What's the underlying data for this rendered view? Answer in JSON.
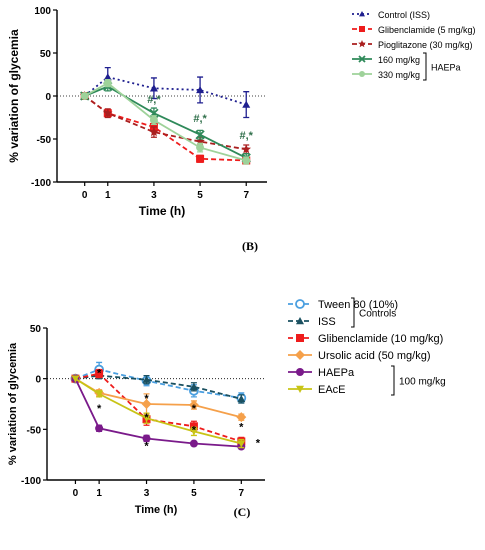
{
  "panel_labels": [
    "(B)",
    "(C)"
  ],
  "chart_data": [
    {
      "type": "line",
      "panel": "(B)",
      "xlabel": "Time (h)",
      "ylabel": "% variation of glycemia",
      "x": [
        0,
        1,
        3,
        5,
        7
      ],
      "x_ticks": [
        "0",
        "1",
        "3",
        "5",
        "7"
      ],
      "y_ticks": [
        "100",
        "50",
        "0",
        "-50",
        "-100"
      ],
      "xlim": [
        -1.2,
        7.9
      ],
      "ylim": [
        -100,
        100
      ],
      "zero_reference_line": true,
      "legend_position": "top-right",
      "legend_group": {
        "label": "HAEPa",
        "members": [
          "160 mg/kg",
          "330 mg/kg"
        ]
      },
      "series": [
        {
          "name": "Control (ISS)",
          "color": "#1f1f8f",
          "line": "dotted",
          "marker": "triangle",
          "values": [
            0,
            22,
            9,
            7,
            -10
          ],
          "errors": [
            0,
            11,
            12,
            15,
            15
          ]
        },
        {
          "name": "Glibenclamide (5 mg/kg)",
          "color": "#ee1c1c",
          "line": "dashed",
          "marker": "square",
          "values": [
            0,
            -20,
            -36,
            -73,
            -75
          ],
          "errors": [
            0,
            4,
            5,
            4,
            4
          ]
        },
        {
          "name": "Pioglitazone (30 mg/kg)",
          "color": "#aa1f1f",
          "line": "dashed",
          "marker": "star",
          "values": [
            0,
            -20,
            -42,
            -53,
            -62
          ],
          "errors": [
            0,
            5,
            6,
            5,
            5
          ]
        },
        {
          "name": "160 mg/kg",
          "color": "#2f8a5a",
          "line": "solid",
          "marker": "x",
          "values": [
            0,
            11,
            -20,
            -45,
            -72
          ],
          "errors": [
            0,
            5,
            6,
            5,
            5
          ]
        },
        {
          "name": "330 mg/kg",
          "color": "#9ed29a",
          "line": "solid",
          "marker": "circle",
          "values": [
            0,
            15,
            -28,
            -60,
            -75
          ],
          "errors": [
            0,
            4,
            5,
            5,
            4
          ]
        }
      ],
      "annotations": [
        {
          "x": 3,
          "y": -8,
          "text": "#,*"
        },
        {
          "x": 5,
          "y": -30,
          "text": "#,*"
        },
        {
          "x": 7,
          "y": -50,
          "text": "#,*"
        }
      ]
    },
    {
      "type": "line",
      "panel": "(C)",
      "xlabel": "Time (h)",
      "ylabel": "% variation of glycemia",
      "x": [
        0,
        1,
        3,
        5,
        7
      ],
      "x_ticks": [
        "0",
        "1",
        "3",
        "5",
        "7"
      ],
      "y_ticks": [
        "50",
        "0",
        "-50",
        "-100"
      ],
      "xlim": [
        -1.2,
        8.0
      ],
      "ylim": [
        -100,
        50
      ],
      "zero_reference_line": true,
      "legend_position": "right",
      "legend_groups": [
        {
          "label": "Controls",
          "members": [
            "Tween 80 (10%)",
            "ISS"
          ]
        },
        {
          "label": "100 mg/kg",
          "members": [
            "HAEPa",
            "EAcE"
          ]
        }
      ],
      "series": [
        {
          "name": "Tween 80 (10%)",
          "color": "#4a9fe0",
          "line": "dashed",
          "marker": "open-circle",
          "values": [
            0,
            9,
            -2,
            -12,
            -19
          ],
          "errors": [
            0,
            7,
            5,
            6,
            5
          ]
        },
        {
          "name": "ISS",
          "color": "#1a5060",
          "line": "dashed",
          "marker": "triangle",
          "values": [
            0,
            3,
            -1,
            -8,
            -20
          ],
          "errors": [
            0,
            3,
            4,
            4,
            4
          ]
        },
        {
          "name": "Glibenclamide (10 mg/kg)",
          "color": "#ee1c1c",
          "line": "dashed",
          "marker": "square",
          "values": [
            0,
            5,
            -40,
            -47,
            -62
          ],
          "errors": [
            0,
            4,
            6,
            5,
            4
          ]
        },
        {
          "name": "Ursolic acid (50 mg/kg)",
          "color": "#f5a04a",
          "line": "solid",
          "marker": "diamond",
          "values": [
            0,
            -14,
            -25,
            -26,
            -38
          ],
          "errors": [
            0,
            3,
            10,
            4,
            3
          ]
        },
        {
          "name": "HAEPa",
          "color": "#7a1a8a",
          "line": "solid",
          "marker": "circle",
          "values": [
            0,
            -49,
            -59,
            -64,
            -67
          ],
          "errors": [
            0,
            3,
            3,
            2,
            2
          ]
        },
        {
          "name": "EAcE",
          "color": "#c8c416",
          "line": "solid",
          "marker": "inverted-triangle",
          "values": [
            0,
            -15,
            -39,
            -52,
            -64
          ],
          "errors": [
            0,
            3,
            5,
            4,
            4
          ]
        }
      ],
      "annotations": [
        {
          "x": 1,
          "y": 2,
          "text": "*"
        },
        {
          "x": 1,
          "y": -33,
          "text": "*"
        },
        {
          "x": 3,
          "y": -23,
          "text": "*"
        },
        {
          "x": 3,
          "y": -42,
          "text": "*"
        },
        {
          "x": 3,
          "y": -70,
          "text": "*"
        },
        {
          "x": 5,
          "y": -33,
          "text": "*"
        },
        {
          "x": 5,
          "y": -54,
          "text": "*"
        },
        {
          "x": 7,
          "y": -51,
          "text": "*"
        },
        {
          "x": 7.7,
          "y": -67,
          "text": "*"
        }
      ]
    }
  ]
}
